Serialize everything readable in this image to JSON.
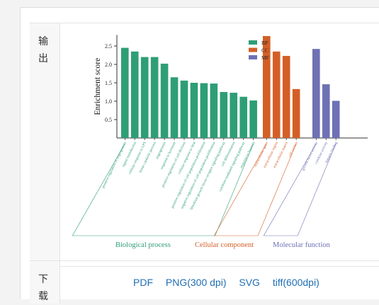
{
  "output_row": {
    "label": "输出"
  },
  "download_row": {
    "label": "下载",
    "links": [
      {
        "label": "PDF"
      },
      {
        "label": "PNG(300 dpi)"
      },
      {
        "label": "SVG"
      },
      {
        "label": "tiff(600dpi)"
      }
    ]
  },
  "chart_data": {
    "type": "bar",
    "ylabel": "Enrichment score",
    "ylim": [
      0,
      2.8
    ],
    "yticks": [
      0.5,
      1.0,
      1.5,
      2.0,
      2.5
    ],
    "legend_position": "top-right",
    "legend": [
      {
        "name": "BP",
        "color": "#2e9e76"
      },
      {
        "name": "CC",
        "color": "#d35f27"
      },
      {
        "name": "MF",
        "color": "#6e71b4"
      }
    ],
    "groups": [
      {
        "name": "Biological process",
        "color": "#2e9e76",
        "categories": [
          "positive regulation of angiogenesis",
          "signal transduction",
          "cellular response to LPS",
          "heme catabolic process",
          "angiogenesis",
          "response to hormone",
          "positive regulation of cell division",
          "cellular response to heat",
          "positive regulation of cell population proliferation",
          "negative regulation of cell population proliferation",
          "fibroblast growth factor receptor signaling pathway",
          "cell differentiation",
          "cytokine-mediated signaling pathway",
          "response to hypoxia"
        ],
        "values": [
          2.45,
          2.35,
          2.2,
          2.2,
          2.02,
          1.65,
          1.56,
          1.5,
          1.49,
          1.48,
          1.25,
          1.23,
          1.12,
          1.02
        ]
      },
      {
        "name": "Cellular component",
        "color": "#d35f27",
        "categories": [
          "extracellular space",
          "extracellular region",
          "extracellular matrix",
          "cell surface"
        ],
        "values": [
          2.77,
          2.35,
          2.23,
          1.33
        ]
      },
      {
        "name": "Molecular function",
        "color": "#6e71b4",
        "categories": [
          "growth factor activity",
          "cytokine activity",
          "heparin binding"
        ],
        "values": [
          2.42,
          1.46,
          1.01
        ]
      }
    ]
  }
}
